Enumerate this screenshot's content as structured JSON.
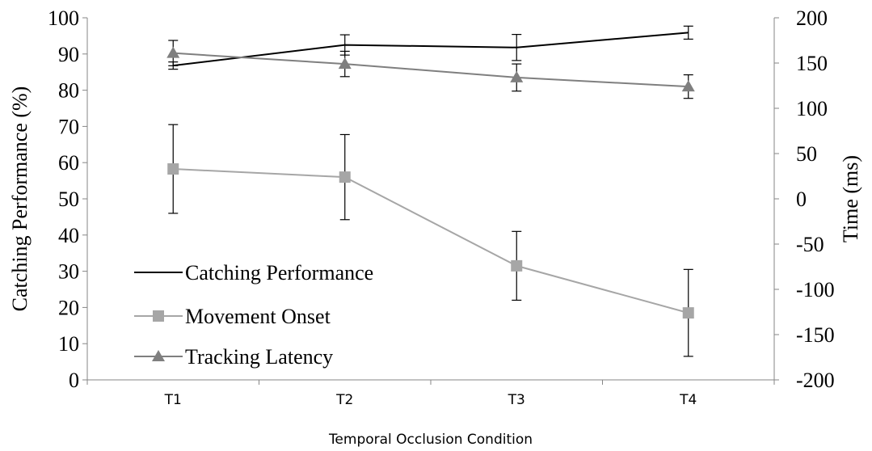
{
  "chart_data": {
    "type": "line",
    "title": "",
    "xlabel": "Temporal Occlusion Condition",
    "ylabel_left": "Catching Performance (%)",
    "ylabel_right": "Time (ms)",
    "categories": [
      "T1",
      "T2",
      "T3",
      "T4"
    ],
    "y_left": {
      "min": 0,
      "max": 100,
      "step": 10,
      "ticks": [
        "0",
        "10",
        "20",
        "30",
        "40",
        "50",
        "60",
        "70",
        "80",
        "90",
        "100"
      ]
    },
    "y_right": {
      "min": -200,
      "max": 200,
      "step": 50,
      "ticks": [
        "-200",
        "-150",
        "-100",
        "-50",
        "0",
        "50",
        "100",
        "150",
        "200"
      ]
    },
    "grid": false,
    "legend_position": "bottom-left",
    "series": [
      {
        "name": "Catching Performance",
        "axis": "left",
        "marker": "none",
        "color": "#000000",
        "values": [
          86.8,
          92.5,
          91.8,
          95.9
        ],
        "errors": [
          1.0,
          2.8,
          3.6,
          1.8
        ]
      },
      {
        "name": "Tracking Latency",
        "axis": "right",
        "marker": "triangle",
        "color": "#7f7f7f",
        "values": [
          161,
          149,
          134,
          124
        ],
        "errors": [
          14,
          14,
          15,
          13
        ]
      },
      {
        "name": "Movement Onset",
        "axis": "right",
        "marker": "square",
        "color": "#a6a6a6",
        "values": [
          33,
          24,
          -74,
          -126
        ],
        "errors": [
          49,
          47,
          38,
          48
        ]
      }
    ],
    "legend_order": [
      "Catching Performance",
      "Movement Onset",
      "Tracking Latency"
    ]
  }
}
